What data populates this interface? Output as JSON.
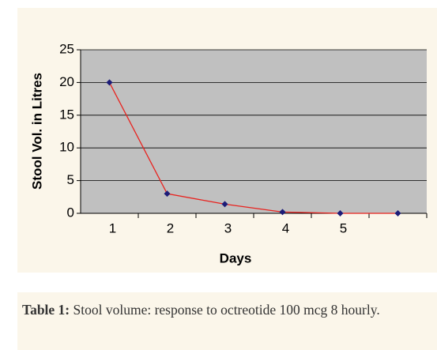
{
  "chart_data": {
    "type": "line",
    "x_label": "Days",
    "y_label": "Stool Vol. in Litres",
    "categories": [
      "1",
      "2",
      "3",
      "4",
      "5",
      null
    ],
    "series": [
      {
        "name": "Stool volume",
        "color": "#e8231f",
        "marker_color": "#1c1c78",
        "values": [
          20,
          3,
          1.4,
          0.2,
          0,
          0
        ]
      }
    ],
    "ylim": [
      0,
      25
    ],
    "yticks": [
      0,
      5,
      10,
      15,
      20,
      25
    ],
    "grid": true,
    "plot_background": "#c0c0c0"
  },
  "caption": {
    "label": "Table 1:",
    "text": "Stool volume: response to octreotide 100 mcg 8 hourly."
  }
}
